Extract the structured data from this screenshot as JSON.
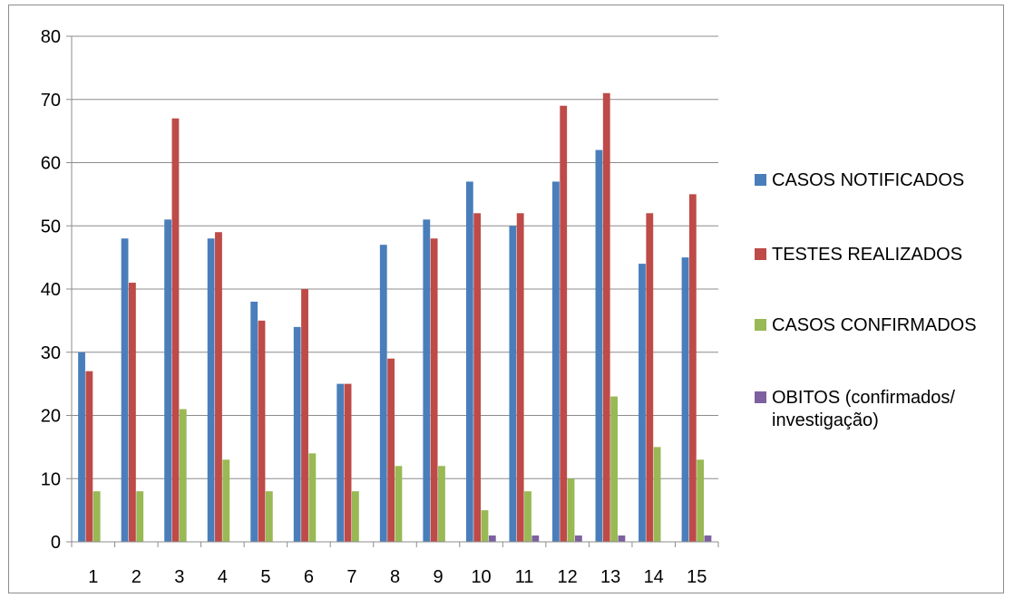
{
  "chart_data": {
    "type": "bar",
    "categories": [
      "1",
      "2",
      "3",
      "4",
      "5",
      "6",
      "7",
      "8",
      "9",
      "10",
      "11",
      "12",
      "13",
      "14",
      "15"
    ],
    "ylim": [
      0,
      80
    ],
    "yticks": [
      "0",
      "10",
      "20",
      "30",
      "40",
      "50",
      "60",
      "70",
      "80"
    ],
    "grid": true,
    "legend_position": "right",
    "series": [
      {
        "name": "CASOS NOTIFICADOS",
        "color": "#4a7ebb",
        "values": [
          30,
          48,
          51,
          48,
          38,
          34,
          25,
          47,
          51,
          57,
          50,
          57,
          62,
          44,
          45
        ]
      },
      {
        "name": "TESTES REALIZADOS",
        "color": "#be4b48",
        "values": [
          27,
          41,
          67,
          49,
          35,
          40,
          25,
          29,
          48,
          52,
          52,
          69,
          71,
          52,
          55
        ]
      },
      {
        "name": "CASOS CONFIRMADOS",
        "color": "#98b954",
        "values": [
          8,
          8,
          21,
          13,
          8,
          14,
          8,
          12,
          12,
          5,
          8,
          10,
          23,
          15,
          13
        ]
      },
      {
        "name": "OBITOS (confirmados/ investigação)",
        "color": "#7d60a0",
        "values": [
          0,
          0,
          0,
          0,
          0,
          0,
          0,
          0,
          0,
          1,
          1,
          1,
          1,
          0,
          1
        ]
      }
    ]
  }
}
